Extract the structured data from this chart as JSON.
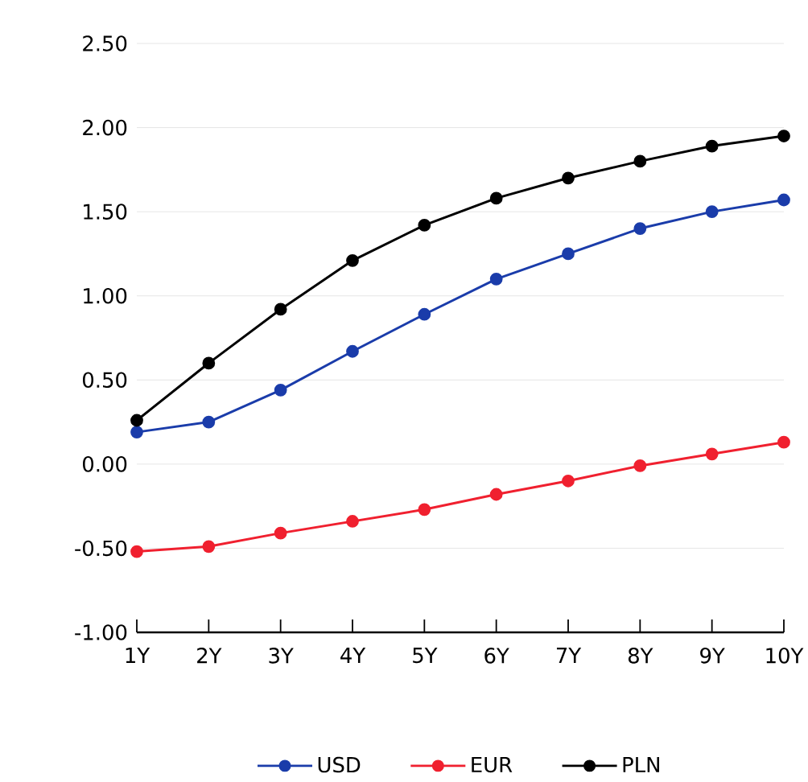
{
  "chart_data": {
    "type": "line",
    "categories": [
      "1Y",
      "2Y",
      "3Y",
      "4Y",
      "5Y",
      "6Y",
      "7Y",
      "8Y",
      "9Y",
      "10Y"
    ],
    "series": [
      {
        "name": "USD",
        "color": "#1a3caa",
        "values": [
          0.19,
          0.25,
          0.44,
          0.67,
          0.89,
          1.1,
          1.25,
          1.4,
          1.5,
          1.57
        ]
      },
      {
        "name": "EUR",
        "color": "#f0202f",
        "values": [
          -0.52,
          -0.49,
          -0.41,
          -0.34,
          -0.27,
          -0.18,
          -0.1,
          -0.01,
          0.06,
          0.13
        ]
      },
      {
        "name": "PLN",
        "color": "#000000",
        "values": [
          0.26,
          0.6,
          0.92,
          1.21,
          1.42,
          1.58,
          1.7,
          1.8,
          1.89,
          1.95
        ]
      }
    ],
    "ylim": [
      -1,
      2.5
    ],
    "yticks": [
      {
        "value": -1,
        "label": "-1.00"
      },
      {
        "value": -0.5,
        "label": "-0.50"
      },
      {
        "value": 0,
        "label": "0.00"
      },
      {
        "value": 0.5,
        "label": "0.50"
      },
      {
        "value": 1,
        "label": "1.00"
      },
      {
        "value": 1.5,
        "label": "1.50"
      },
      {
        "value": 2,
        "label": "2.00"
      },
      {
        "value": 2.5,
        "label": "2.50"
      }
    ],
    "grid": "y",
    "legend": "bottom",
    "marker": "circle",
    "line_style": "solid"
  }
}
